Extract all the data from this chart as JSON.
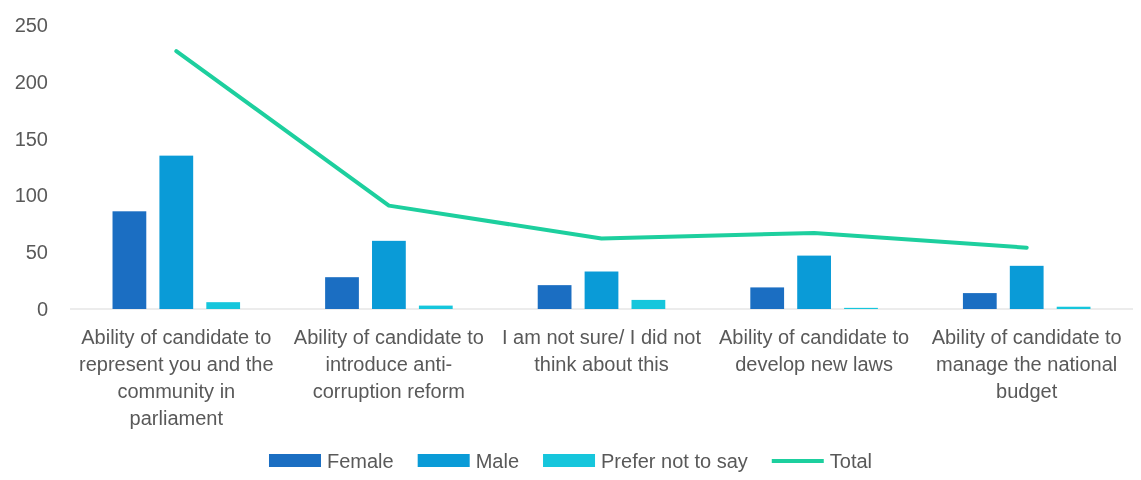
{
  "chart_data": {
    "type": "bar",
    "categories": [
      "Ability of candidate to represent you and the community in parliament",
      "Ability of candidate to introduce anti-corruption reform",
      "I am not sure/ I did not think about this",
      "Ability of candidate to develop new laws",
      "Ability of candidate to manage the national budget"
    ],
    "series": [
      {
        "name": "Female",
        "color": "#1b6ec2",
        "values": [
          86,
          28,
          21,
          19,
          14
        ]
      },
      {
        "name": "Male",
        "color": "#0a9bd7",
        "values": [
          135,
          60,
          33,
          47,
          38
        ]
      },
      {
        "name": "Prefer not to say",
        "color": "#16c6dc",
        "values": [
          6,
          3,
          8,
          1,
          2
        ]
      },
      {
        "name": "Total",
        "type": "line",
        "color": "#1dcf9e",
        "values": [
          227,
          91,
          62,
          67,
          54
        ]
      }
    ],
    "ylim": [
      0,
      250
    ],
    "yticks": [
      0,
      50,
      100,
      150,
      200,
      250
    ],
    "grid": false,
    "legend": "bottom"
  }
}
